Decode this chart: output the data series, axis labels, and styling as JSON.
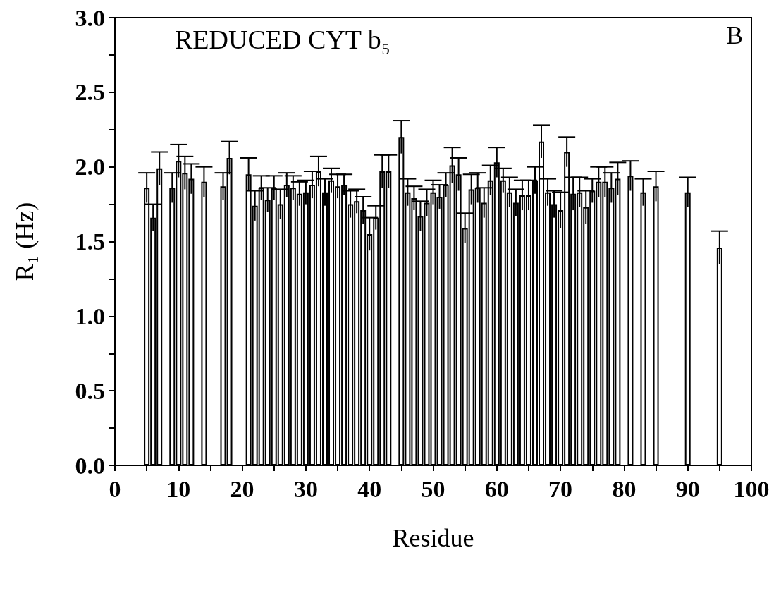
{
  "chart_data": {
    "type": "bar",
    "title": "REDUCED CYT b₅",
    "xlabel": "Residue",
    "ylabel": "R₁ (Hz)",
    "annotations": [
      "B"
    ],
    "x": [
      5,
      6,
      7,
      9,
      10,
      11,
      12,
      14,
      17,
      18,
      21,
      22,
      23,
      24,
      25,
      26,
      27,
      28,
      29,
      30,
      31,
      32,
      33,
      34,
      35,
      36,
      37,
      38,
      39,
      40,
      41,
      42,
      43,
      45,
      46,
      47,
      48,
      49,
      50,
      51,
      52,
      53,
      54,
      55,
      56,
      57,
      58,
      59,
      60,
      61,
      62,
      63,
      64,
      65,
      66,
      67,
      68,
      69,
      70,
      71,
      72,
      73,
      74,
      75,
      76,
      77,
      78,
      79,
      81,
      83,
      85,
      90,
      95
    ],
    "values": [
      1.86,
      1.66,
      1.99,
      1.86,
      2.04,
      1.96,
      1.92,
      1.9,
      1.87,
      2.06,
      1.95,
      1.74,
      1.86,
      1.78,
      1.86,
      1.75,
      1.88,
      1.86,
      1.82,
      1.83,
      1.88,
      1.97,
      1.83,
      1.91,
      1.87,
      1.88,
      1.75,
      1.77,
      1.71,
      1.55,
      1.66,
      1.97,
      1.97,
      2.2,
      1.83,
      1.79,
      1.67,
      1.76,
      1.83,
      1.8,
      1.88,
      2.01,
      1.95,
      1.59,
      1.85,
      1.86,
      1.76,
      1.91,
      2.03,
      1.91,
      1.83,
      1.76,
      1.81,
      1.81,
      1.91,
      2.17,
      1.83,
      1.75,
      1.71,
      2.1,
      1.82,
      1.83,
      1.73,
      1.84,
      1.9,
      1.9,
      1.86,
      1.92,
      1.94,
      1.83,
      1.87,
      1.83,
      1.46
    ],
    "errors": [
      0.1,
      0.09,
      0.11,
      0.1,
      0.11,
      0.11,
      0.1,
      0.1,
      0.09,
      0.11,
      0.11,
      0.1,
      0.08,
      0.08,
      0.08,
      0.1,
      0.08,
      0.08,
      0.08,
      0.08,
      0.09,
      0.1,
      0.09,
      0.08,
      0.08,
      0.07,
      0.09,
      0.08,
      0.09,
      0.11,
      0.08,
      0.11,
      0.11,
      0.11,
      0.09,
      0.08,
      0.1,
      0.09,
      0.08,
      0.08,
      0.08,
      0.12,
      0.11,
      0.1,
      0.1,
      0.1,
      0.1,
      0.1,
      0.1,
      0.08,
      0.1,
      0.09,
      0.1,
      0.1,
      0.09,
      0.11,
      0.09,
      0.09,
      0.12,
      0.1,
      0.11,
      0.1,
      0.11,
      0.08,
      0.1,
      0.1,
      0.1,
      0.11,
      0.1,
      0.09,
      0.1,
      0.1,
      0.11
    ],
    "color": "#ffffff",
    "xlim": [
      0,
      100
    ],
    "xticks": [
      0,
      {
        "value": 5,
        "label": null
      },
      10,
      {
        "value": 15,
        "label": null
      },
      20,
      {
        "value": 25,
        "label": null
      },
      30,
      {
        "value": 35,
        "label": null
      },
      40,
      {
        "value": 45,
        "label": null
      },
      50,
      {
        "value": 55,
        "label": null
      },
      60,
      {
        "value": 65,
        "label": null
      },
      70,
      {
        "value": 75,
        "label": null
      },
      80,
      {
        "value": 85,
        "label": null
      },
      90,
      {
        "value": 95,
        "label": null
      },
      100
    ],
    "ylim": [
      0,
      3
    ],
    "yticks": [
      {
        "value": 0,
        "label": "0.0"
      },
      {
        "value": 0.25,
        "label": null
      },
      {
        "value": 0.5,
        "label": "0.5"
      },
      {
        "value": 0.75,
        "label": null
      },
      {
        "value": 1,
        "label": "1.0"
      },
      {
        "value": 1.25,
        "label": null
      },
      {
        "value": 1.5,
        "label": "1.5"
      },
      {
        "value": 1.75,
        "label": null
      },
      {
        "value": 2,
        "label": "2.0"
      },
      {
        "value": 2.25,
        "label": null
      },
      {
        "value": 2.5,
        "label": "2.5"
      },
      {
        "value": 2.75,
        "label": null
      },
      {
        "value": 3,
        "label": "3.0"
      }
    ],
    "grid": false
  }
}
